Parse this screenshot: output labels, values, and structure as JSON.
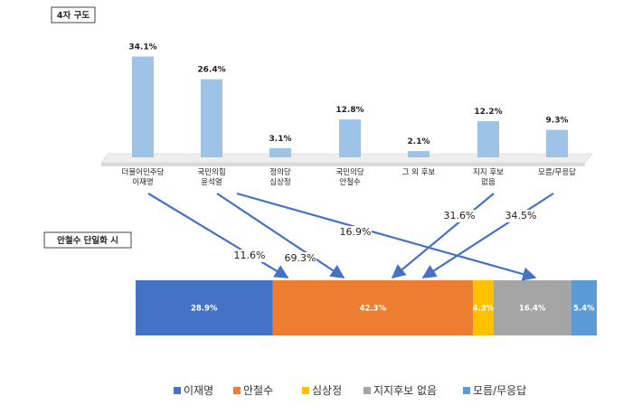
{
  "chart_data": [
    {
      "type": "bar",
      "title": "4자 구도",
      "categories": [
        [
          "더불어민주당",
          "이재명"
        ],
        [
          "국민의힘",
          "윤석열"
        ],
        [
          "정의당",
          "심상정"
        ],
        [
          "국민의당",
          "안철수"
        ],
        [
          "그 외 후보"
        ],
        [
          "지지 후보",
          "없음"
        ],
        [
          "모름/무응답"
        ]
      ],
      "values": [
        34.1,
        26.4,
        3.1,
        12.8,
        2.1,
        12.2,
        9.3
      ],
      "value_labels": [
        "34.1%",
        "26.4%",
        "3.1%",
        "12.8%",
        "2.1%",
        "12.2%",
        "9.3%"
      ],
      "bar_color": "#9DC3E6"
    },
    {
      "type": "bar",
      "orientation": "horizontal-stacked",
      "title": "안철수 단일화 시",
      "series": [
        {
          "name": "이재명",
          "value": 28.9,
          "label": "28.9%",
          "color": "#4472C4"
        },
        {
          "name": "안철수",
          "value": 42.3,
          "label": "42.3%",
          "color": "#ED7D31"
        },
        {
          "name": "심상정",
          "value": 4.3,
          "label": "4.3%",
          "color": "#FFC000"
        },
        {
          "name": "지지후보 없음",
          "value": 16.4,
          "label": "16.4%",
          "color": "#A5A5A5"
        },
        {
          "name": "모름/무응답",
          "value": 5.4,
          "label": "5.4%",
          "color": "#5B9BD5"
        }
      ],
      "legend_position": "bottom"
    }
  ],
  "flows": [
    {
      "from": 0,
      "to": 1,
      "label": "11.6%"
    },
    {
      "from": 1,
      "to": 1,
      "label": "69.3%"
    },
    {
      "from": 1,
      "to": 3,
      "label": "16.9%"
    },
    {
      "from": 5,
      "to": 1,
      "label": "31.6%"
    },
    {
      "from": 6,
      "to": 1,
      "label": "34.5%"
    }
  ],
  "colors": {
    "arrow": "#4472C4",
    "floor_top": "#eeeeee",
    "floor_side": "#d9d9d9"
  }
}
